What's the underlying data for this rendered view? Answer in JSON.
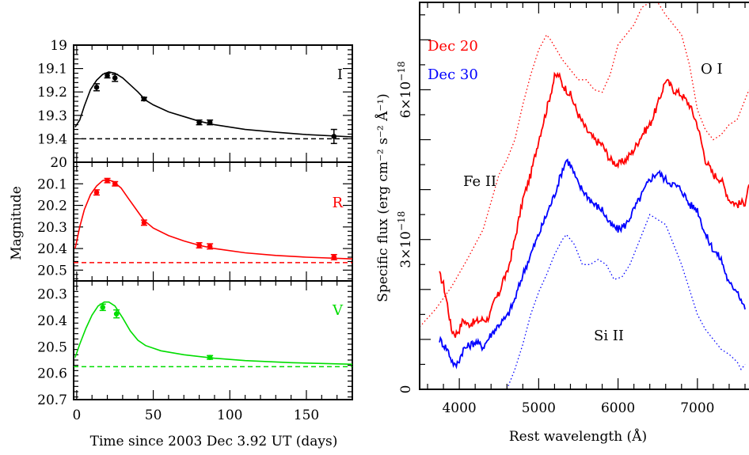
{
  "chart_data": [
    {
      "type": "scatter",
      "panel": "light-curves",
      "xlabel": "Time since 2003 Dec 3.92 UT (days)",
      "ylabel": "Magnitude",
      "xlim": [
        -2,
        180
      ],
      "x_ticks": [
        "0",
        "50",
        "100",
        "150"
      ],
      "subpanels": [
        {
          "band": "I",
          "color": "#000000",
          "ylim": [
            19.0,
            19.5
          ],
          "y_ticks": [
            "19",
            "19.1",
            "19.2",
            "19.3",
            "19.4"
          ],
          "baseline": 19.4,
          "points": [
            {
              "x": 13,
              "y": 19.18,
              "err": 0.015
            },
            {
              "x": 20,
              "y": 19.13,
              "err": 0.01
            },
            {
              "x": 25,
              "y": 19.14,
              "err": 0.015
            },
            {
              "x": 44,
              "y": 19.23,
              "err": 0.007
            },
            {
              "x": 80,
              "y": 19.33,
              "err": 0.01
            },
            {
              "x": 87,
              "y": 19.33,
              "err": 0.01
            },
            {
              "x": 168,
              "y": 19.39,
              "err": 0.03
            }
          ],
          "curve": [
            [
              -1,
              19.35
            ],
            [
              2,
              19.32
            ],
            [
              5,
              19.26
            ],
            [
              9,
              19.19
            ],
            [
              13,
              19.15
            ],
            [
              17,
              19.125
            ],
            [
              21,
              19.115
            ],
            [
              25,
              19.12
            ],
            [
              30,
              19.14
            ],
            [
              35,
              19.17
            ],
            [
              40,
              19.2
            ],
            [
              45,
              19.235
            ],
            [
              50,
              19.255
            ],
            [
              60,
              19.285
            ],
            [
              70,
              19.305
            ],
            [
              80,
              19.325
            ],
            [
              90,
              19.34
            ],
            [
              110,
              19.36
            ],
            [
              130,
              19.372
            ],
            [
              150,
              19.382
            ],
            [
              180,
              19.392
            ]
          ]
        },
        {
          "band": "R",
          "color": "#ff0000",
          "ylim": [
            20.0,
            20.55
          ],
          "y_ticks": [
            "20",
            "20.1",
            "20.2",
            "20.3",
            "20.4",
            "20.5"
          ],
          "baseline": 20.465,
          "points": [
            {
              "x": 13,
              "y": 20.14,
              "err": 0.012
            },
            {
              "x": 20,
              "y": 20.085,
              "err": 0.01
            },
            {
              "x": 25,
              "y": 20.1,
              "err": 0.01
            },
            {
              "x": 44,
              "y": 20.28,
              "err": 0.012
            },
            {
              "x": 80,
              "y": 20.385,
              "err": 0.012
            },
            {
              "x": 87,
              "y": 20.39,
              "err": 0.012
            },
            {
              "x": 168,
              "y": 20.44,
              "err": 0.012
            }
          ],
          "curve": [
            [
              -1,
              20.4
            ],
            [
              2,
              20.3
            ],
            [
              5,
              20.22
            ],
            [
              9,
              20.15
            ],
            [
              13,
              20.11
            ],
            [
              17,
              20.085
            ],
            [
              20,
              20.08
            ],
            [
              24,
              20.09
            ],
            [
              29,
              20.12
            ],
            [
              34,
              20.17
            ],
            [
              39,
              20.22
            ],
            [
              44,
              20.27
            ],
            [
              50,
              20.305
            ],
            [
              60,
              20.34
            ],
            [
              70,
              20.365
            ],
            [
              80,
              20.385
            ],
            [
              90,
              20.4
            ],
            [
              110,
              20.42
            ],
            [
              130,
              20.432
            ],
            [
              150,
              20.44
            ],
            [
              180,
              20.448
            ]
          ]
        },
        {
          "band": "V",
          "color": "#00dd00",
          "ylim": [
            20.25,
            20.7
          ],
          "y_ticks": [
            "20.3",
            "20.4",
            "20.5",
            "20.6",
            "20.7"
          ],
          "baseline": 20.575,
          "points": [
            {
              "x": 17,
              "y": 20.35,
              "err": 0.012
            },
            {
              "x": 26,
              "y": 20.375,
              "err": 0.015
            },
            {
              "x": 87,
              "y": 20.54,
              "err": 0.007
            }
          ],
          "curve": [
            [
              -1,
              20.54
            ],
            [
              2,
              20.49
            ],
            [
              6,
              20.43
            ],
            [
              10,
              20.38
            ],
            [
              14,
              20.345
            ],
            [
              18,
              20.33
            ],
            [
              21,
              20.33
            ],
            [
              25,
              20.345
            ],
            [
              30,
              20.39
            ],
            [
              35,
              20.44
            ],
            [
              40,
              20.475
            ],
            [
              45,
              20.495
            ],
            [
              55,
              20.515
            ],
            [
              70,
              20.53
            ],
            [
              90,
              20.543
            ],
            [
              110,
              20.552
            ],
            [
              140,
              20.56
            ],
            [
              180,
              20.566
            ]
          ]
        }
      ]
    },
    {
      "type": "line",
      "panel": "spectra",
      "xlabel": "Rest wavelength (Å)",
      "ylabel": "Specific flux (erg cm⁻² s⁻² Å⁻¹)",
      "xlim": [
        3500,
        7650
      ],
      "x_ticks": [
        "4000",
        "5000",
        "6000",
        "7000"
      ],
      "ylim": [
        0,
        7.75
      ],
      "y_ticks": [
        {
          "value": 0,
          "label": "0",
          "sup": ""
        },
        {
          "value": 3,
          "label": "3×10",
          "sup": "−18"
        },
        {
          "value": 6,
          "label": "6×10",
          "sup": "−18"
        }
      ],
      "legend": [
        {
          "label": "Dec 20",
          "color": "#ff0000"
        },
        {
          "label": "Dec 30",
          "color": "#0000ff"
        }
      ],
      "annotations": [
        "O I",
        "Fe II",
        "Si II"
      ],
      "series": [
        {
          "name": "Dec 20",
          "color": "#ff0000",
          "style": "solid",
          "points": [
            [
              3750,
              2.3
            ],
            [
              3800,
              2.1
            ],
            [
              3850,
              1.7
            ],
            [
              3900,
              1.2
            ],
            [
              3950,
              1.1
            ],
            [
              4000,
              1.2
            ],
            [
              4050,
              1.4
            ],
            [
              4100,
              1.3
            ],
            [
              4200,
              1.35
            ],
            [
              4300,
              1.4
            ],
            [
              4350,
              1.4
            ],
            [
              4400,
              1.55
            ],
            [
              4450,
              1.8
            ],
            [
              4500,
              1.9
            ],
            [
              4550,
              2.2
            ],
            [
              4600,
              2.3
            ],
            [
              4700,
              3.0
            ],
            [
              4800,
              3.8
            ],
            [
              4900,
              4.3
            ],
            [
              5000,
              5.0
            ],
            [
              5100,
              5.6
            ],
            [
              5200,
              6.25
            ],
            [
              5250,
              6.3
            ],
            [
              5300,
              6.1
            ],
            [
              5400,
              5.9
            ],
            [
              5500,
              5.5
            ],
            [
              5600,
              5.2
            ],
            [
              5700,
              5.0
            ],
            [
              5800,
              4.9
            ],
            [
              5900,
              4.6
            ],
            [
              6000,
              4.5
            ],
            [
              6100,
              4.6
            ],
            [
              6200,
              4.8
            ],
            [
              6300,
              5.1
            ],
            [
              6400,
              5.3
            ],
            [
              6500,
              5.7
            ],
            [
              6600,
              6.2
            ],
            [
              6700,
              6.0
            ],
            [
              6800,
              5.9
            ],
            [
              6900,
              5.7
            ],
            [
              7000,
              5.3
            ],
            [
              7100,
              4.6
            ],
            [
              7200,
              4.3
            ],
            [
              7300,
              4.2
            ],
            [
              7400,
              3.8
            ],
            [
              7500,
              3.7
            ],
            [
              7600,
              3.75
            ],
            [
              7650,
              4.1
            ]
          ]
        },
        {
          "name": "Dec 30",
          "color": "#0000ff",
          "style": "solid",
          "points": [
            [
              3750,
              1.0
            ],
            [
              3800,
              0.9
            ],
            [
              3850,
              0.8
            ],
            [
              3900,
              0.6
            ],
            [
              3950,
              0.45
            ],
            [
              4000,
              0.6
            ],
            [
              4050,
              0.8
            ],
            [
              4100,
              0.85
            ],
            [
              4200,
              0.95
            ],
            [
              4300,
              0.85
            ],
            [
              4400,
              1.1
            ],
            [
              4500,
              1.3
            ],
            [
              4600,
              1.45
            ],
            [
              4700,
              1.8
            ],
            [
              4800,
              2.3
            ],
            [
              4900,
              2.7
            ],
            [
              5000,
              3.1
            ],
            [
              5100,
              3.5
            ],
            [
              5200,
              3.9
            ],
            [
              5300,
              4.4
            ],
            [
              5350,
              4.6
            ],
            [
              5400,
              4.5
            ],
            [
              5500,
              4.1
            ],
            [
              5600,
              3.9
            ],
            [
              5700,
              3.7
            ],
            [
              5800,
              3.6
            ],
            [
              5900,
              3.3
            ],
            [
              6000,
              3.2
            ],
            [
              6100,
              3.3
            ],
            [
              6200,
              3.6
            ],
            [
              6300,
              3.9
            ],
            [
              6400,
              4.2
            ],
            [
              6500,
              4.35
            ],
            [
              6600,
              4.2
            ],
            [
              6700,
              4.1
            ],
            [
              6800,
              4.0
            ],
            [
              6900,
              3.7
            ],
            [
              7000,
              3.6
            ],
            [
              7100,
              3.1
            ],
            [
              7200,
              2.8
            ],
            [
              7300,
              2.6
            ],
            [
              7400,
              2.1
            ],
            [
              7500,
              2.0
            ],
            [
              7600,
              1.6
            ]
          ]
        },
        {
          "name": "",
          "color": "#ff0000",
          "style": "dotted",
          "points": [
            [
              3500,
              1.25
            ],
            [
              3700,
              1.6
            ],
            [
              3900,
              2.05
            ],
            [
              4100,
              2.6
            ],
            [
              4300,
              3.2
            ],
            [
              4500,
              4.3
            ],
            [
              4600,
              4.6
            ],
            [
              4700,
              5.0
            ],
            [
              4800,
              5.7
            ],
            [
              4900,
              6.3
            ],
            [
              5000,
              6.8
            ],
            [
              5100,
              7.1
            ],
            [
              5150,
              7.0
            ],
            [
              5300,
              6.6
            ],
            [
              5500,
              6.2
            ],
            [
              5600,
              6.2
            ],
            [
              5700,
              6.0
            ],
            [
              5800,
              5.95
            ],
            [
              5900,
              6.3
            ],
            [
              6000,
              6.9
            ],
            [
              6200,
              7.3
            ],
            [
              6300,
              7.65
            ],
            [
              6400,
              7.75
            ],
            [
              6500,
              7.75
            ],
            [
              6600,
              7.5
            ],
            [
              6800,
              7.1
            ],
            [
              6900,
              6.5
            ],
            [
              7000,
              5.6
            ],
            [
              7100,
              5.2
            ],
            [
              7200,
              5.0
            ],
            [
              7300,
              5.1
            ],
            [
              7400,
              5.3
            ],
            [
              7500,
              5.4
            ],
            [
              7600,
              5.8
            ],
            [
              7650,
              6.0
            ]
          ]
        },
        {
          "name": "",
          "color": "#0000ff",
          "style": "dotted",
          "points": [
            [
              4600,
              0
            ],
            [
              4700,
              0.4
            ],
            [
              4800,
              0.9
            ],
            [
              4900,
              1.5
            ],
            [
              5000,
              1.95
            ],
            [
              5100,
              2.3
            ],
            [
              5200,
              2.7
            ],
            [
              5300,
              3.0
            ],
            [
              5350,
              3.1
            ],
            [
              5450,
              2.9
            ],
            [
              5550,
              2.5
            ],
            [
              5650,
              2.5
            ],
            [
              5750,
              2.6
            ],
            [
              5850,
              2.5
            ],
            [
              5950,
              2.2
            ],
            [
              6050,
              2.25
            ],
            [
              6150,
              2.5
            ],
            [
              6250,
              2.9
            ],
            [
              6350,
              3.3
            ],
            [
              6400,
              3.5
            ],
            [
              6500,
              3.4
            ],
            [
              6600,
              3.3
            ],
            [
              6700,
              2.9
            ],
            [
              6800,
              2.5
            ],
            [
              6900,
              2.0
            ],
            [
              7000,
              1.5
            ],
            [
              7100,
              1.2
            ],
            [
              7200,
              1.0
            ],
            [
              7300,
              0.8
            ],
            [
              7400,
              0.7
            ],
            [
              7500,
              0.55
            ],
            [
              7550,
              0.4
            ],
            [
              7600,
              0.5
            ]
          ]
        }
      ]
    }
  ]
}
